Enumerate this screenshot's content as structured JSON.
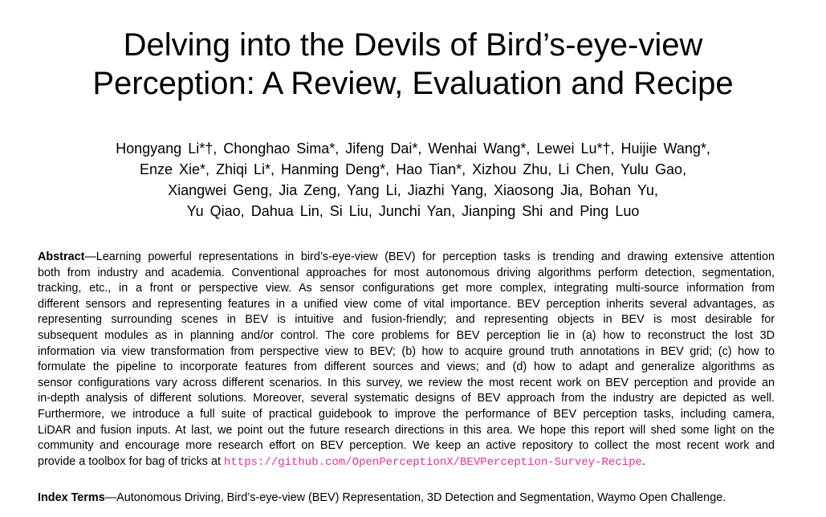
{
  "title": {
    "lines": [
      "Delving into the Devils of Bird’s-eye-view",
      "Perception: A Review, Evaluation and Recipe"
    ]
  },
  "authors": {
    "lines": [
      "Hongyang Li*†,  Chonghao Sima*,  Jifeng Dai*,  Wenhai Wang*,  Lewei Lu*†,  Huijie Wang*,",
      "Enze Xie*,  Zhiqi Li*,  Hanming Deng*,  Hao Tian*,  Xizhou Zhu,  Li Chen,  Yulu Gao,",
      "Xiangwei Geng, Jia Zeng,  Yang Li,  Jiazhi Yang,  Xiaosong Jia,  Bohan Yu,",
      "Yu Qiao,  Dahua Lin,  Si Liu,  Junchi Yan,  Jianping Shi  and  Ping Luo"
    ]
  },
  "abstract": {
    "label": "Abstract",
    "lines": [
      "—Learning powerful representations in bird’s-eye-view (BEV) for perception tasks is trending and drawing extensive attention",
      "both from industry and academia. Conventional approaches for most autonomous driving algorithms perform detection, segmentation,",
      "tracking, etc., in a front or perspective view. As sensor configurations get more complex, integrating multi-source information from",
      "different sensors and representing features in a unified view come of vital importance. BEV perception inherits several advantages, as",
      "representing surrounding scenes in BEV is intuitive and fusion-friendly; and representing objects in BEV is most desirable for",
      "subsequent modules as in planning and/or control. The core problems for BEV perception lie in (a) how to reconstruct the lost 3D",
      "information via view transformation from perspective view to BEV; (b) how to acquire ground truth annotations in BEV grid; (c) how to",
      "formulate the pipeline to incorporate features from different sources and views; and (d) how to adapt and generalize algorithms as",
      "sensor configurations vary across different scenarios. In this survey, we review the most recent work on BEV perception and provide an",
      "in-depth analysis of different solutions. Moreover, several systematic designs of BEV approach from the industry are depicted as well.",
      "Furthermore, we introduce a full suite of practical guidebook to improve the performance of BEV perception tasks, including camera,",
      "LiDAR and fusion inputs. At last, we point out the future research directions in this area. We hope this report will shed some light on the",
      "community and encourage more research effort on BEV perception. We keep an active repository to collect the most recent work and"
    ],
    "last_line_prefix": "provide a toolbox for bag of tricks at ",
    "url": "https://github.com/OpenPerceptionX/BEVPerception-Survey-Recipe",
    "last_line_suffix": ".",
    "url_color": "#e0309a"
  },
  "index_terms": {
    "label": "Index Terms",
    "text": "—Autonomous Driving, Bird’s-eye-view (BEV) Representation, 3D Detection and Segmentation, Waymo Open Challenge."
  }
}
